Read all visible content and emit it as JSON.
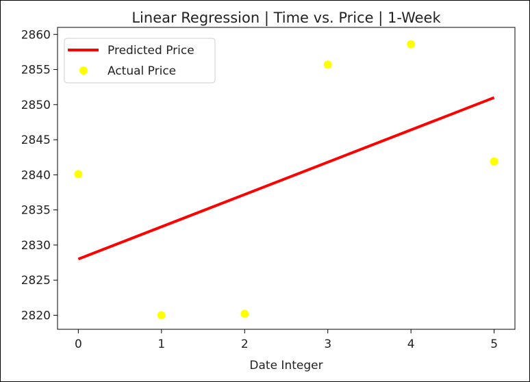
{
  "chart_data": {
    "type": "scatter",
    "title": "Linear Regression | Time vs. Price | 1-Week",
    "xlabel": "Date Integer",
    "ylabel": "",
    "xlim": [
      -0.25,
      5.25
    ],
    "ylim": [
      2818,
      2861
    ],
    "x_ticks": [
      0,
      1,
      2,
      3,
      4,
      5
    ],
    "y_ticks": [
      2820,
      2825,
      2830,
      2835,
      2840,
      2845,
      2850,
      2855,
      2860
    ],
    "grid": false,
    "legend_position": "top-left",
    "series": [
      {
        "name": "Predicted Price",
        "kind": "line",
        "color": "#ff0000",
        "x": [
          0,
          5
        ],
        "y": [
          2828.0,
          2851.0
        ]
      },
      {
        "name": "Actual Price",
        "kind": "scatter",
        "color": "#ffff00",
        "x": [
          0,
          1,
          2,
          3,
          4,
          5
        ],
        "y": [
          2840.1,
          2820.0,
          2820.2,
          2855.7,
          2858.6,
          2841.9
        ]
      }
    ]
  }
}
